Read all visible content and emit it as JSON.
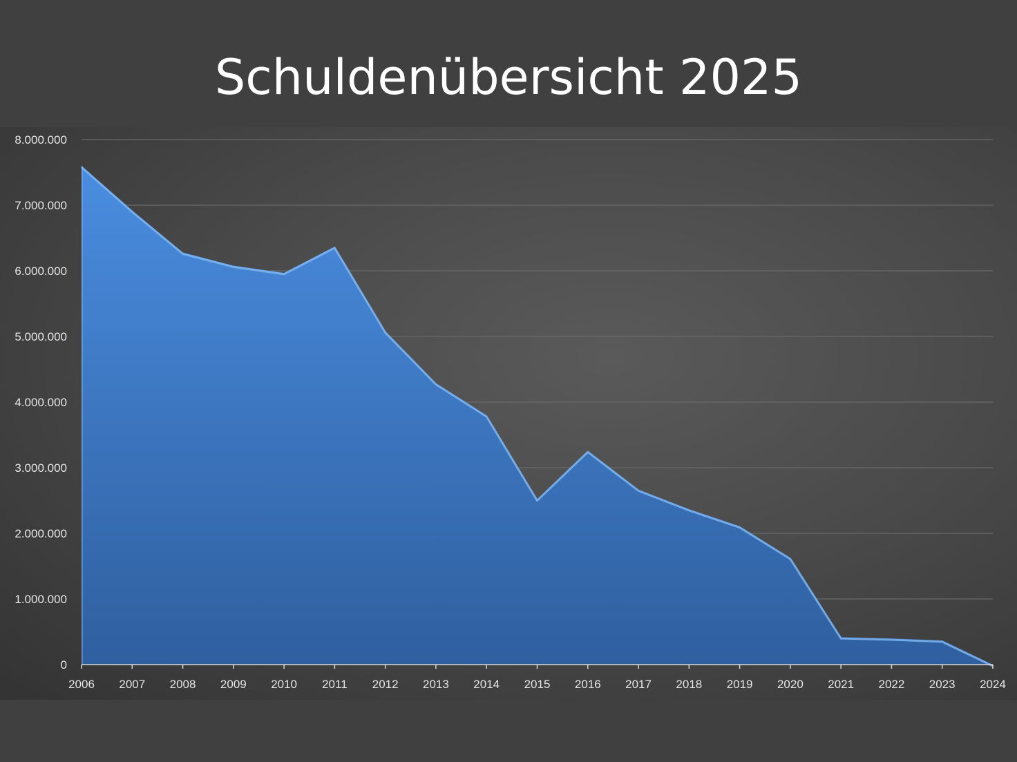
{
  "title": "Schuldenübersicht 2025",
  "colors": {
    "background": "#404040",
    "area_top": "#4a8de0",
    "area_bottom": "#2f5f9f",
    "area_edge": "#7fb6f0",
    "gridline": "#6a6a6a",
    "text": "#ffffff"
  },
  "chart_data": {
    "type": "area",
    "title": "Schuldenübersicht 2025",
    "xlabel": "",
    "ylabel": "",
    "ylim": [
      0,
      8000000
    ],
    "grid": true,
    "legend": "none",
    "y_ticks": [
      "0",
      "1.000.000",
      "2.000.000",
      "3.000.000",
      "4.000.000",
      "5.000.000",
      "6.000.000",
      "7.000.000",
      "8.000.000"
    ],
    "y_tick_values": [
      0,
      1000000,
      2000000,
      3000000,
      4000000,
      5000000,
      6000000,
      7000000,
      8000000
    ],
    "categories": [
      "2006",
      "2007",
      "2008",
      "2009",
      "2010",
      "2011",
      "2012",
      "2013",
      "2014",
      "2015",
      "2016",
      "2017",
      "2018",
      "2019",
      "2020",
      "2021",
      "2022",
      "2023",
      "2024"
    ],
    "series": [
      {
        "values": [
          7600000,
          6920000,
          6280000,
          6080000,
          5970000,
          6370000,
          5080000,
          4290000,
          3800000,
          2520000,
          3260000,
          2670000,
          2370000,
          2110000,
          1630000,
          420000,
          400000,
          370000,
          0
        ]
      }
    ]
  }
}
